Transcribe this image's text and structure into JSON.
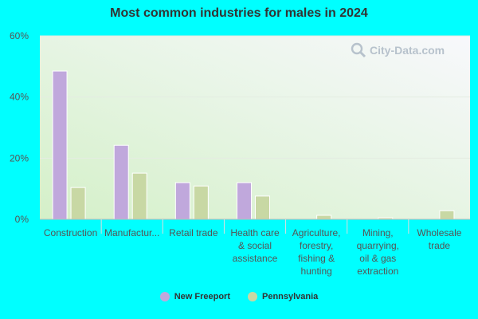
{
  "chart_data": {
    "type": "bar",
    "title": "Most common industries for males in 2024",
    "categories": [
      "Construction",
      "Manufactur...",
      "Retail trade",
      "Health care & social assistance",
      "Agriculture, forestry, fishing & hunting",
      "Mining, quarrying, oil & gas extraction",
      "Wholesale trade"
    ],
    "category_lines": [
      [
        "Construction"
      ],
      [
        "Manufactur..."
      ],
      [
        "Retail trade"
      ],
      [
        "Health care",
        "& social",
        "assistance"
      ],
      [
        "Agriculture,",
        "forestry,",
        "fishing &",
        "hunting"
      ],
      [
        "Mining,",
        "quarrying,",
        "oil & gas",
        "extraction"
      ],
      [
        "Wholesale",
        "trade"
      ]
    ],
    "series": [
      {
        "name": "New Freeport",
        "values": [
          48.5,
          24.2,
          12.0,
          12.0,
          0,
          0,
          0
        ],
        "color": "#c0a8dc"
      },
      {
        "name": "Pennsylvania",
        "values": [
          10.4,
          15.1,
          10.9,
          7.6,
          1.3,
          0.5,
          2.8
        ],
        "color": "#c8d8a4"
      }
    ],
    "ylim": [
      0,
      60
    ],
    "yticks": [
      0,
      20,
      40,
      60
    ],
    "ytick_labels": [
      "0%",
      "20%",
      "40%",
      "60%"
    ],
    "grid": true,
    "legend_position": "bottom"
  },
  "watermark": {
    "text": "City-Data.com",
    "icon": "magnifier-icon"
  }
}
